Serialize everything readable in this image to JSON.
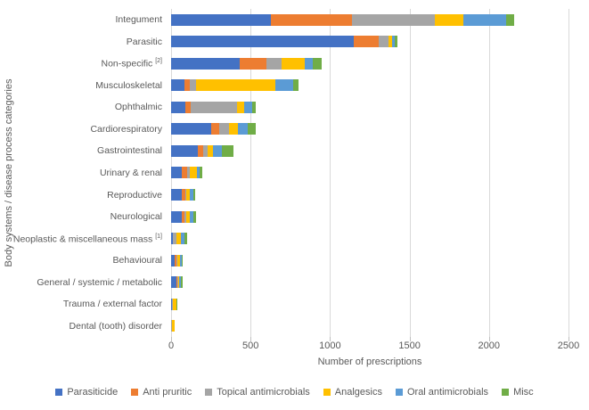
{
  "chart_data": {
    "type": "bar",
    "orientation": "horizontal",
    "stacked": true,
    "title": "",
    "xlabel": "Number of prescriptions",
    "ylabel": "Body systems / disease process categories",
    "xlim": [
      0,
      2500
    ],
    "xticks": [
      0,
      500,
      1000,
      1500,
      2000,
      2500
    ],
    "grid": "vertical",
    "legend_position": "bottom",
    "categories": [
      {
        "label": "Integument",
        "sup": ""
      },
      {
        "label": "Parasitic",
        "sup": ""
      },
      {
        "label": "Non-specific ",
        "sup": "[2]"
      },
      {
        "label": "Musculoskeletal",
        "sup": ""
      },
      {
        "label": "Ophthalmic",
        "sup": ""
      },
      {
        "label": "Cardiorespiratory",
        "sup": ""
      },
      {
        "label": "Gastrointestinal",
        "sup": ""
      },
      {
        "label": "Urinary & renal",
        "sup": ""
      },
      {
        "label": "Reproductive",
        "sup": ""
      },
      {
        "label": "Neurological",
        "sup": ""
      },
      {
        "label": "Neoplastic & miscellaneous mass ",
        "sup": "[1]"
      },
      {
        "label": "Behavioural",
        "sup": ""
      },
      {
        "label": "General / systemic / metabolic",
        "sup": ""
      },
      {
        "label": "Trauma / external factor",
        "sup": ""
      },
      {
        "label": "Dental (tooth) disorder",
        "sup": ""
      }
    ],
    "series": [
      {
        "name": "Parasiticide",
        "color": "#4472C4",
        "values": [
          625,
          1150,
          430,
          85,
          90,
          255,
          170,
          70,
          65,
          65,
          10,
          25,
          35,
          5,
          0
        ]
      },
      {
        "name": "Anti pruritic",
        "color": "#ED7D31",
        "values": [
          515,
          155,
          170,
          30,
          35,
          50,
          30,
          30,
          25,
          20,
          0,
          10,
          5,
          0,
          0
        ]
      },
      {
        "name": "Topical antimicrobials",
        "color": "#A5A5A5",
        "values": [
          520,
          65,
          95,
          40,
          290,
          60,
          30,
          20,
          5,
          10,
          25,
          5,
          5,
          5,
          5
        ]
      },
      {
        "name": "Analgesics",
        "color": "#FFC000",
        "values": [
          180,
          20,
          145,
          500,
          45,
          55,
          35,
          40,
          20,
          20,
          25,
          15,
          5,
          25,
          15
        ]
      },
      {
        "name": "Oral antimicrobials",
        "color": "#5B9BD5",
        "values": [
          270,
          15,
          50,
          115,
          50,
          60,
          55,
          20,
          25,
          25,
          25,
          10,
          10,
          0,
          0
        ]
      },
      {
        "name": "Misc",
        "color": "#70AD47",
        "values": [
          50,
          20,
          55,
          30,
          25,
          50,
          75,
          15,
          10,
          15,
          15,
          10,
          15,
          5,
          0
        ]
      }
    ]
  },
  "colors": {
    "gridline": "#d9d9d9",
    "tick": "#bfbfbf",
    "text": "#595959",
    "background": "#ffffff"
  }
}
